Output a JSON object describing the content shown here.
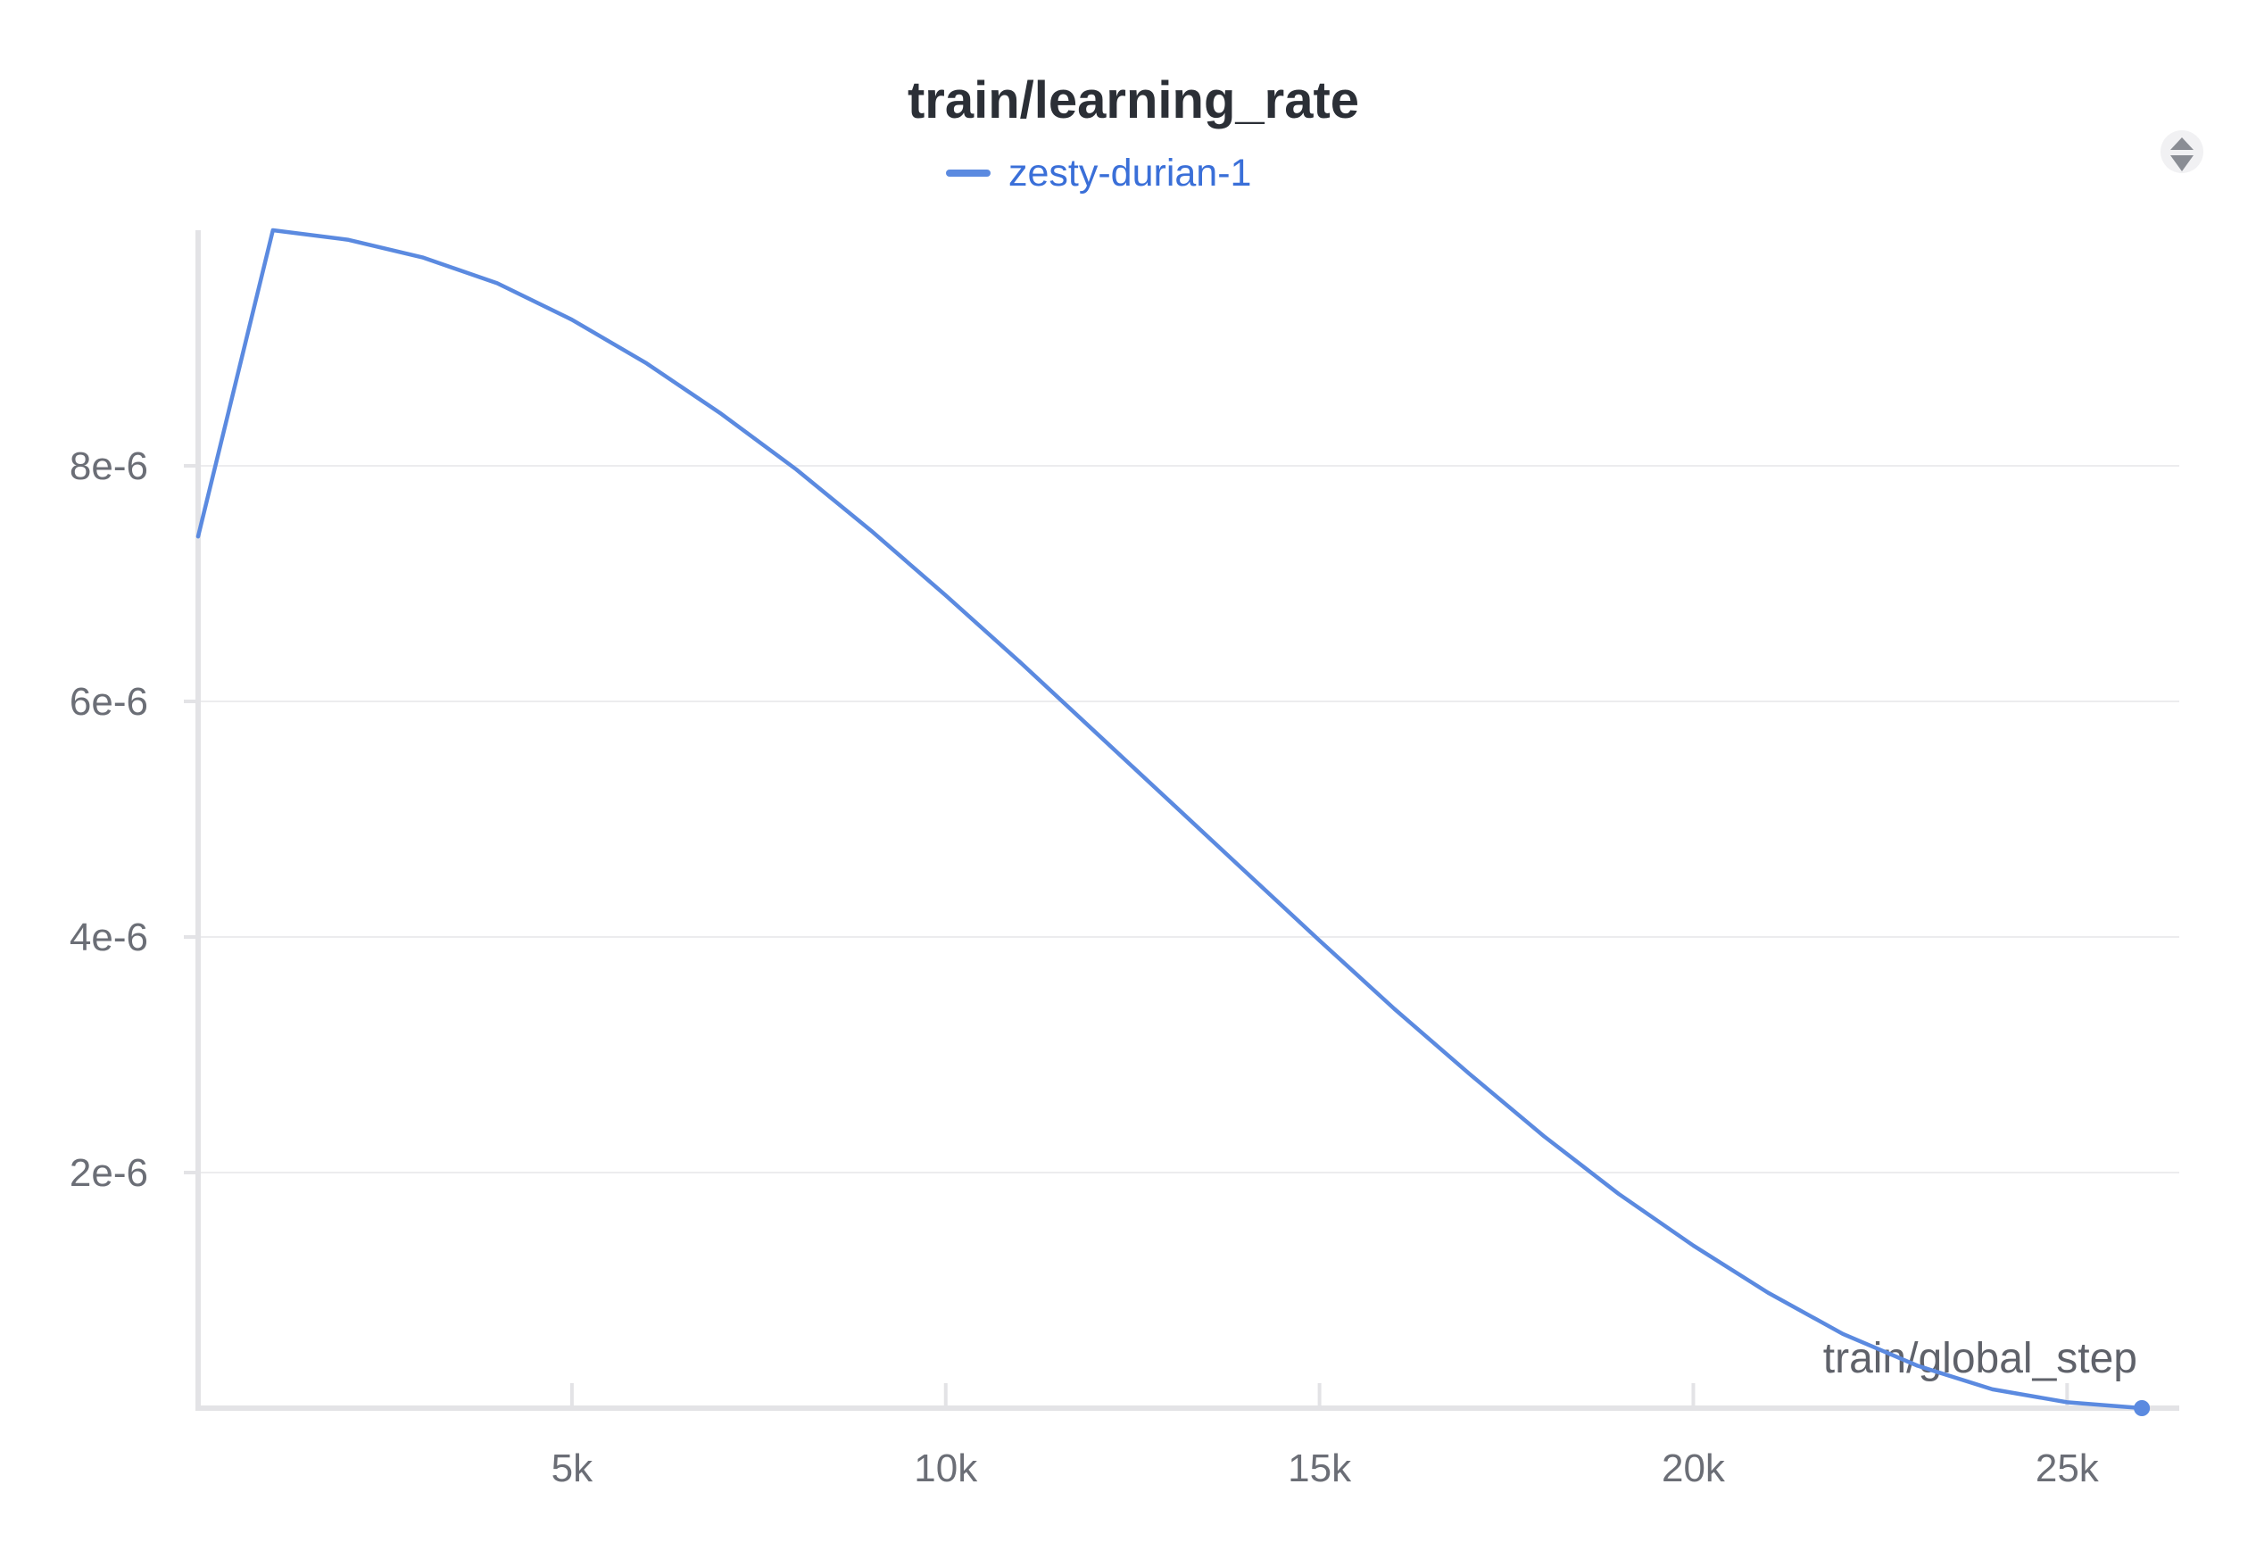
{
  "chart_data": {
    "type": "line",
    "title": "train/learning_rate",
    "xlabel": "train/global_step",
    "ylabel": "",
    "xlim": [
      0,
      26500
    ],
    "ylim": [
      0,
      1e-05
    ],
    "x_ticks": [
      5000,
      10000,
      15000,
      20000,
      25000
    ],
    "x_tick_labels": [
      "5k",
      "10k",
      "15k",
      "20k",
      "25k"
    ],
    "y_ticks": [
      2e-06,
      4e-06,
      6e-06,
      8e-06
    ],
    "y_tick_labels": [
      "2e-6",
      "4e-6",
      "6e-6",
      "8e-6"
    ],
    "grid": "horizontal",
    "legend_position": "top-center",
    "series": [
      {
        "name": "zesty-durian-1",
        "color": "#5b8ae0",
        "x": [
          0,
          1000,
          2000,
          3000,
          4000,
          5000,
          6000,
          7000,
          8000,
          9000,
          10000,
          11000,
          12000,
          13000,
          14000,
          15000,
          16000,
          17000,
          18000,
          19000,
          20000,
          21000,
          22000,
          23000,
          24000,
          25000,
          26000
        ],
        "values": [
          7.4e-06,
          1e-05,
          9.92e-06,
          9.77e-06,
          9.55e-06,
          9.24e-06,
          8.87e-06,
          8.44e-06,
          7.97e-06,
          7.45e-06,
          6.9e-06,
          6.33e-06,
          5.74e-06,
          5.15e-06,
          4.56e-06,
          3.97e-06,
          3.39e-06,
          2.84e-06,
          2.31e-06,
          1.82e-06,
          1.38e-06,
          9.8e-07,
          6.3e-07,
          3.6e-07,
          1.6e-07,
          5e-08,
          0
        ]
      }
    ]
  },
  "legend": {
    "items": [
      {
        "label": "zesty-durian-1",
        "color": "#5b8ae0"
      }
    ]
  },
  "colors": {
    "accent": "#5b8ae0",
    "legend_text": "#3a6fd8",
    "axis": "#e3e3e6",
    "grid": "#ececee",
    "tick_text": "#6b6e76",
    "title": "#2b2f36"
  },
  "icons": {
    "reorder": "sort-toggle-icon"
  }
}
